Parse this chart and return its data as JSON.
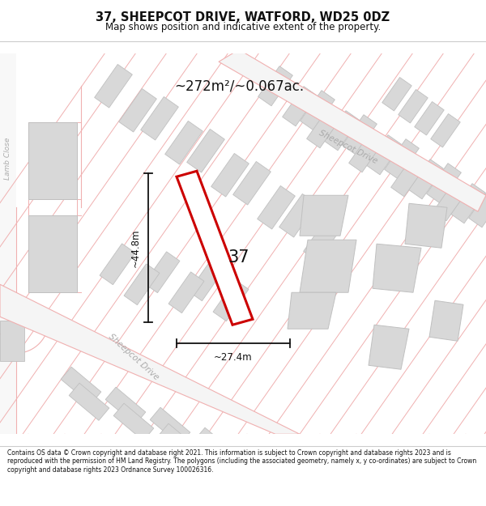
{
  "title_line1": "37, SHEEPCOT DRIVE, WATFORD, WD25 0DZ",
  "title_line2": "Map shows position and indicative extent of the property.",
  "area_text": "~272m²/~0.067ac.",
  "dim_height": "~44.8m",
  "dim_width": "~27.4m",
  "plot_number": "37",
  "street_label_upper": "Sheepcot Drive",
  "street_label_lower": "Sheepcot Drive",
  "side_label": "Lamb Close",
  "footer_text": "Contains OS data © Crown copyright and database right 2021. This information is subject to Crown copyright and database rights 2023 and is reproduced with the permission of HM Land Registry. The polygons (including the associated geometry, namely x, y co-ordinates) are subject to Crown copyright and database rights 2023 Ordnance Survey 100026316.",
  "bg_color": "#ffffff",
  "plot_fill": "#ffffff",
  "plot_color": "#cc0000",
  "road_line_color": "#f0b0b0",
  "plot_line_color": "#f0b0b0",
  "building_color": "#d8d8d8",
  "building_outline": "#c0c0c0",
  "dim_line_color": "#111111",
  "text_color": "#111111",
  "street_text_color": "#aaaaaa",
  "footer_color": "#111111",
  "header_separator": "#cccccc"
}
